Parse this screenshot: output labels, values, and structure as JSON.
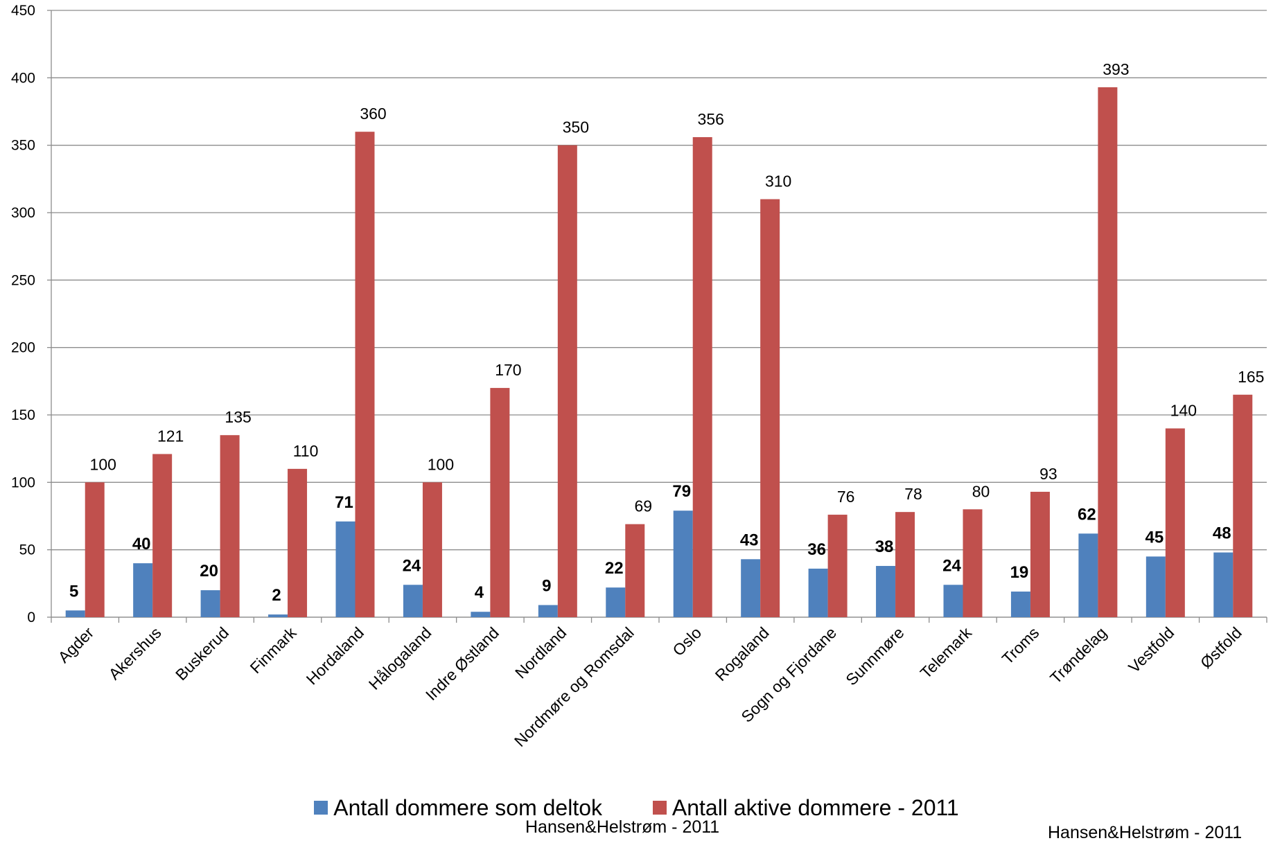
{
  "chart_data": {
    "type": "bar",
    "categories": [
      "Agder",
      "Akershus",
      "Buskerud",
      "Finmark",
      "Hordaland",
      "Hålogaland",
      "Indre Østland",
      "Nordland",
      "Nordmøre og Romsdal",
      "Oslo",
      "Rogaland",
      "Sogn og Fjordane",
      "Sunnmøre",
      "Telemark",
      "Troms",
      "Trøndelag",
      "Vestfold",
      "Østfold"
    ],
    "series": [
      {
        "name": "Antall dommere som deltok",
        "color": "#4F81BD",
        "values": [
          5,
          40,
          20,
          2,
          71,
          24,
          4,
          9,
          22,
          79,
          43,
          36,
          38,
          24,
          19,
          62,
          45,
          48
        ]
      },
      {
        "name": "Antall aktive dommere - 2011",
        "color": "#C0504D",
        "values": [
          100,
          121,
          135,
          110,
          360,
          100,
          170,
          350,
          69,
          356,
          310,
          76,
          78,
          80,
          93,
          393,
          140,
          165
        ]
      }
    ],
    "ylim": [
      0,
      450
    ],
    "yticks": [
      0,
      50,
      100,
      150,
      200,
      250,
      300,
      350,
      400,
      450
    ],
    "grid": true,
    "legend_position": "bottom",
    "data_labels": true
  },
  "credits": {
    "center": "Hansen&Helstrøm - 2011",
    "right": "Hansen&Helstrøm - 2011"
  }
}
